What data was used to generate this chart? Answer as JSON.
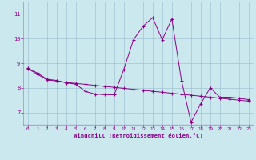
{
  "title": "",
  "xlabel": "Windchill (Refroidissement éolien,°C)",
  "background_color": "#cce8ef",
  "line_color": "#880088",
  "grid_color": "#99bbcc",
  "xlim": [
    -0.5,
    23.5
  ],
  "ylim": [
    6.5,
    11.5
  ],
  "yticks": [
    7,
    8,
    9,
    10,
    11
  ],
  "xticks": [
    0,
    1,
    2,
    3,
    4,
    5,
    6,
    7,
    8,
    9,
    10,
    11,
    12,
    13,
    14,
    15,
    16,
    17,
    18,
    19,
    20,
    21,
    22,
    23
  ],
  "series1_x": [
    0,
    1,
    2,
    3,
    4,
    5,
    6,
    7,
    8,
    9,
    10,
    11,
    12,
    13,
    14,
    15,
    16,
    17,
    18,
    19,
    20,
    21,
    22,
    23
  ],
  "series1_y": [
    8.8,
    8.6,
    8.35,
    8.3,
    8.2,
    8.15,
    7.85,
    7.75,
    7.72,
    7.72,
    8.75,
    9.95,
    10.5,
    10.85,
    9.95,
    10.8,
    8.3,
    6.6,
    7.35,
    8.0,
    7.62,
    7.62,
    7.58,
    7.52
  ],
  "series2_x": [
    0,
    1,
    2,
    3,
    4,
    5,
    6,
    7,
    8,
    9,
    10,
    11,
    12,
    13,
    14,
    15,
    16,
    17,
    18,
    19,
    20,
    21,
    22,
    23
  ],
  "series2_y": [
    8.78,
    8.55,
    8.32,
    8.28,
    8.22,
    8.18,
    8.14,
    8.1,
    8.06,
    8.02,
    7.98,
    7.94,
    7.9,
    7.86,
    7.82,
    7.78,
    7.74,
    7.7,
    7.66,
    7.62,
    7.58,
    7.54,
    7.5,
    7.46
  ],
  "marker_size": 2.5,
  "linewidth": 0.7
}
